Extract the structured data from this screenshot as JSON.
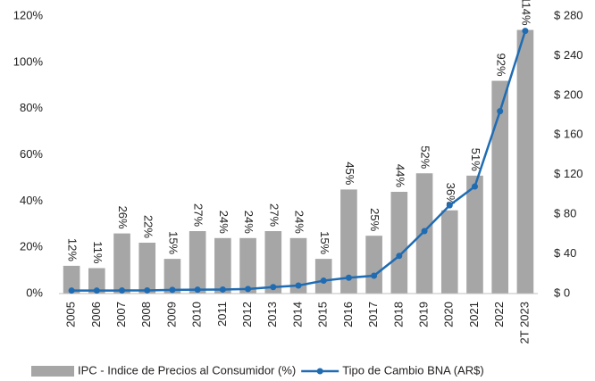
{
  "chart_data": {
    "type": "bar_line",
    "categories": [
      "2005",
      "2006",
      "2007",
      "2008",
      "2009",
      "2010",
      "2011",
      "2012",
      "2013",
      "2014",
      "2015",
      "2016",
      "2017",
      "2018",
      "2019",
      "2020",
      "2021",
      "2022",
      "2T 2023"
    ],
    "series": [
      {
        "name": "IPC - Indice de Precios al Consumidor (%)",
        "color": "#a6a6a6",
        "type": "bar",
        "values": [
          12,
          11,
          26,
          22,
          15,
          27,
          24,
          24,
          27,
          24,
          15,
          45,
          25,
          44,
          52,
          36,
          51,
          92,
          114
        ],
        "value_labels": [
          "12%",
          "11%",
          "26%",
          "22%",
          "15%",
          "27%",
          "24%",
          "24%",
          "27%",
          "24%",
          "15%",
          "45%",
          "25%",
          "44%",
          "52%",
          "36%",
          "51%",
          "92%",
          "114%"
        ]
      },
      {
        "name": "Tipo de Cambio BNA (AR$)",
        "color": "#1f6cb3",
        "type": "line",
        "axis": "y2",
        "values": [
          3,
          3,
          3.1,
          3.2,
          3.7,
          3.9,
          4.1,
          4.6,
          6.5,
          8.1,
          13,
          16,
          18,
          38,
          63,
          89,
          108,
          184,
          265
        ]
      }
    ],
    "ylim": [
      0,
      120
    ],
    "yticks": [
      {
        "value": 0,
        "label": "0%"
      },
      {
        "value": 20,
        "label": "20%"
      },
      {
        "value": 40,
        "label": "40%"
      },
      {
        "value": 60,
        "label": "60%"
      },
      {
        "value": 80,
        "label": "80%"
      },
      {
        "value": 100,
        "label": "100%"
      },
      {
        "value": 120,
        "label": "120%"
      }
    ],
    "y2lim": [
      0,
      280
    ],
    "y2ticks": [
      {
        "value": 0,
        "label": "$ 0"
      },
      {
        "value": 40,
        "label": "$ 40"
      },
      {
        "value": 80,
        "label": "$ 80"
      },
      {
        "value": 120,
        "label": "$ 120"
      },
      {
        "value": 160,
        "label": "$ 160"
      },
      {
        "value": 200,
        "label": "$ 200"
      },
      {
        "value": 240,
        "label": "$ 240"
      },
      {
        "value": 280,
        "label": "$ 280"
      }
    ],
    "legend": "bottom"
  }
}
